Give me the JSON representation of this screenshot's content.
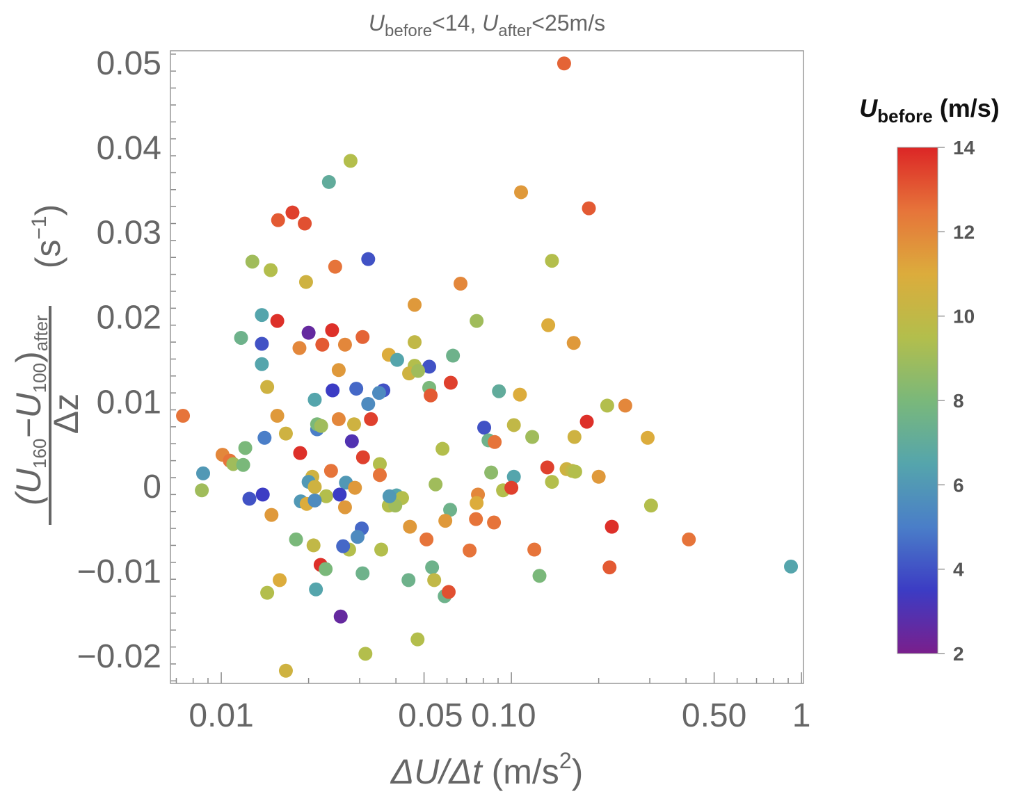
{
  "chart_data": {
    "type": "scatter",
    "title": {
      "u": "U",
      "sub1": "before",
      "mid": "<14, ",
      "u2": "U",
      "sub2": "after",
      "tail": "<25m/s"
    },
    "xlabel": {
      "main": "ΔU/Δt",
      "unit": " (m/s",
      "sup": "2",
      "close": ")"
    },
    "ylabel": {
      "open": "(U",
      "s1": "160",
      "minus": "−U",
      "s2": "100",
      "close": ")",
      "s3": "after",
      "den": "Δz",
      "unit": "(s",
      "sup": "−1",
      "uclose": ")"
    },
    "x_scale": "log",
    "xlim": [
      0.00668,
      1.016
    ],
    "ylim": [
      -0.0233,
      0.0514
    ],
    "x_ticks": [
      {
        "v": 0.01,
        "label": "0.01"
      },
      {
        "v": 0.05,
        "label": "0.05"
      },
      {
        "v": 0.1,
        "label": "0.10"
      },
      {
        "v": 0.5,
        "label": "0.50"
      },
      {
        "v": 1,
        "label": "1"
      }
    ],
    "y_ticks": [
      {
        "v": 0.05,
        "label": "0.05"
      },
      {
        "v": 0.04,
        "label": "0.04"
      },
      {
        "v": 0.03,
        "label": "0.03"
      },
      {
        "v": 0.02,
        "label": "0.02"
      },
      {
        "v": 0.01,
        "label": "0.01"
      },
      {
        "v": 0,
        "label": "0"
      },
      {
        "v": -0.01,
        "label": "−0.01"
      },
      {
        "v": -0.02,
        "label": "−0.02"
      }
    ],
    "grid": false,
    "colorbar": {
      "title_u": "U",
      "title_sub": "before",
      "title_unit": " (m/s)",
      "range": [
        2,
        14
      ],
      "ticks": [
        "14",
        "12",
        "10",
        "8",
        "6",
        "4",
        "2"
      ],
      "tick_values": [
        14,
        12,
        10,
        8,
        6,
        4,
        2
      ],
      "stops": [
        [
          2,
          "#7a1f8c"
        ],
        [
          3.5,
          "#3c3cc4"
        ],
        [
          5,
          "#4a7ec8"
        ],
        [
          6.5,
          "#55a5ac"
        ],
        [
          8,
          "#7ab87a"
        ],
        [
          9.5,
          "#b3be4c"
        ],
        [
          11,
          "#dcac3c"
        ],
        [
          12.5,
          "#e6743a"
        ],
        [
          14,
          "#dc2626"
        ]
      ],
      "placement": "right"
    },
    "points_columns": [
      "x",
      "y",
      "U_before"
    ],
    "points": [
      [
        0.152,
        0.0499,
        12.8
      ],
      [
        0.0279,
        0.0384,
        9.5
      ],
      [
        0.0235,
        0.0359,
        7
      ],
      [
        0.108,
        0.0347,
        11.5
      ],
      [
        0.185,
        0.0328,
        13
      ],
      [
        0.0176,
        0.0323,
        13.5
      ],
      [
        0.0157,
        0.0314,
        13
      ],
      [
        0.0194,
        0.031,
        13.2
      ],
      [
        0.0128,
        0.0265,
        9
      ],
      [
        0.0148,
        0.0255,
        9.5
      ],
      [
        0.0321,
        0.0268,
        4
      ],
      [
        0.138,
        0.0266,
        9.5
      ],
      [
        0.0247,
        0.0259,
        12.5
      ],
      [
        0.0196,
        0.0241,
        10.5
      ],
      [
        0.0668,
        0.0239,
        12
      ],
      [
        0.0464,
        0.0214,
        11.5
      ],
      [
        0.0138,
        0.0202,
        6.5
      ],
      [
        0.0156,
        0.0195,
        13.8
      ],
      [
        0.0759,
        0.0195,
        9
      ],
      [
        0.134,
        0.019,
        11
      ],
      [
        0.02,
        0.0181,
        2.5
      ],
      [
        0.0241,
        0.0184,
        13.8
      ],
      [
        0.0117,
        0.0175,
        7.5
      ],
      [
        0.0138,
        0.0168,
        4
      ],
      [
        0.0307,
        0.0176,
        12.8
      ],
      [
        0.0186,
        0.0163,
        12
      ],
      [
        0.0223,
        0.0167,
        13
      ],
      [
        0.0267,
        0.0167,
        12
      ],
      [
        0.0464,
        0.017,
        10
      ],
      [
        0.164,
        0.0169,
        11.5
      ],
      [
        0.0378,
        0.0155,
        11
      ],
      [
        0.0404,
        0.0149,
        6.5
      ],
      [
        0.0629,
        0.0154,
        7.5
      ],
      [
        0.0521,
        0.0141,
        4
      ],
      [
        0.0138,
        0.0144,
        6.5
      ],
      [
        0.0254,
        0.0137,
        11.5
      ],
      [
        0.0464,
        0.0142,
        9.5
      ],
      [
        0.0444,
        0.0133,
        10.5
      ],
      [
        0.0477,
        0.0136,
        9
      ],
      [
        0.0618,
        0.0122,
        13.5
      ],
      [
        0.0144,
        0.0117,
        10.5
      ],
      [
        0.0242,
        0.0113,
        3.5
      ],
      [
        0.0292,
        0.0115,
        4.5
      ],
      [
        0.0362,
        0.0113,
        4
      ],
      [
        0.035,
        0.011,
        5.5
      ],
      [
        0.0521,
        0.0116,
        8
      ],
      [
        0.0527,
        0.0107,
        13
      ],
      [
        0.0906,
        0.0112,
        7
      ],
      [
        0.107,
        0.0108,
        11
      ],
      [
        0.021,
        0.0102,
        6.5
      ],
      [
        0.0321,
        0.0097,
        5.5
      ],
      [
        0.00738,
        0.0083,
        12.5
      ],
      [
        0.0156,
        0.0083,
        11.5
      ],
      [
        0.0254,
        0.0079,
        12
      ],
      [
        0.0287,
        0.0073,
        10.5
      ],
      [
        0.0328,
        0.0079,
        13.5
      ],
      [
        0.0214,
        0.0067,
        5
      ],
      [
        0.0214,
        0.0073,
        8
      ],
      [
        0.0221,
        0.0071,
        9
      ],
      [
        0.0806,
        0.0069,
        4
      ],
      [
        0.102,
        0.0072,
        10
      ],
      [
        0.0167,
        0.0062,
        10.5
      ],
      [
        0.182,
        0.0076,
        13.8
      ],
      [
        0.214,
        0.0095,
        9.5
      ],
      [
        0.247,
        0.0095,
        12
      ],
      [
        0.0141,
        0.0057,
        5
      ],
      [
        0.118,
        0.0058,
        9
      ],
      [
        0.165,
        0.0058,
        10.5
      ],
      [
        0.295,
        0.0057,
        11
      ],
      [
        0.0834,
        0.0054,
        7.5
      ],
      [
        0.0876,
        0.0052,
        12.5
      ],
      [
        0.0121,
        0.0045,
        8
      ],
      [
        0.0282,
        0.0053,
        3
      ],
      [
        0.0187,
        0.0039,
        13.8
      ],
      [
        0.0579,
        0.0044,
        9.5
      ],
      [
        0.0101,
        0.0037,
        12
      ],
      [
        0.0107,
        0.003,
        12.5
      ],
      [
        0.011,
        0.0026,
        9
      ],
      [
        0.0119,
        0.0025,
        8
      ],
      [
        0.0308,
        0.0034,
        13.5
      ],
      [
        0.00866,
        0.0015,
        6
      ],
      [
        0.0206,
        0.0011,
        10.5
      ],
      [
        0.0239,
        0.0018,
        12.5
      ],
      [
        0.0352,
        0.0026,
        9.5
      ],
      [
        0.0352,
        0.0013,
        12.5
      ],
      [
        0.0852,
        0.0016,
        8.5
      ],
      [
        0.133,
        0.0022,
        13.5
      ],
      [
        0.155,
        0.002,
        10.5
      ],
      [
        0.162,
        0.0018,
        10
      ],
      [
        0.166,
        0.0017,
        9.5
      ],
      [
        0.2,
        0.0011,
        11.5
      ],
      [
        0.102,
        0.0011,
        6.5
      ],
      [
        0.0548,
        0.0002,
        9
      ],
      [
        0.0269,
        0.0004,
        6
      ],
      [
        0.02,
        0.0005,
        6
      ],
      [
        0.021,
        -0.0001,
        10.5
      ],
      [
        0.0289,
        -0.0002,
        11.5
      ],
      [
        0.00857,
        -0.0005,
        9
      ],
      [
        0.0125,
        -0.0015,
        4
      ],
      [
        0.0139,
        -0.001,
        3.5
      ],
      [
        0.023,
        -0.0012,
        9.5
      ],
      [
        0.0256,
        -0.001,
        3.5
      ],
      [
        0.0188,
        -0.0018,
        6
      ],
      [
        0.0197,
        -0.0021,
        11
      ],
      [
        0.021,
        -0.0017,
        5.5
      ],
      [
        0.0267,
        -0.0025,
        11.5
      ],
      [
        0.0402,
        -0.0011,
        6.5
      ],
      [
        0.042,
        -0.0014,
        9.5
      ],
      [
        0.0378,
        -0.0023,
        9.5
      ],
      [
        0.0398,
        -0.0023,
        9
      ],
      [
        0.0767,
        -0.001,
        12
      ],
      [
        0.0936,
        -0.0005,
        9.5
      ],
      [
        0.1,
        -0.0002,
        13.5
      ],
      [
        0.138,
        0.0005,
        9.5
      ],
      [
        0.303,
        -0.0023,
        9.5
      ],
      [
        0.0759,
        -0.002,
        11
      ],
      [
        0.0615,
        -0.0028,
        7.5
      ],
      [
        0.0149,
        -0.0034,
        11.5
      ],
      [
        0.0592,
        -0.0041,
        11.5
      ],
      [
        0.0755,
        -0.0039,
        12.5
      ],
      [
        0.0871,
        -0.0043,
        12.5
      ],
      [
        0.0447,
        -0.0048,
        11.5
      ],
      [
        0.0305,
        -0.005,
        4.5
      ],
      [
        0.0295,
        -0.006,
        5.5
      ],
      [
        0.0181,
        -0.0063,
        8
      ],
      [
        0.0208,
        -0.007,
        10
      ],
      [
        0.0276,
        -0.0075,
        9.5
      ],
      [
        0.0263,
        -0.0071,
        4.5
      ],
      [
        0.051,
        -0.0063,
        12.5
      ],
      [
        0.0718,
        -0.0076,
        12.5
      ],
      [
        0.12,
        -0.0075,
        12.5
      ],
      [
        0.222,
        -0.0048,
        13.8
      ],
      [
        0.409,
        -0.0063,
        12.5
      ],
      [
        0.92,
        -0.0095,
        6.5
      ],
      [
        0.218,
        -0.0096,
        13
      ],
      [
        0.022,
        -0.0093,
        13.8
      ],
      [
        0.0229,
        -0.0098,
        8
      ],
      [
        0.0533,
        -0.0096,
        7.5
      ],
      [
        0.0307,
        -0.0103,
        7.5
      ],
      [
        0.0442,
        -0.0111,
        7.5
      ],
      [
        0.0542,
        -0.0111,
        10
      ],
      [
        0.0159,
        -0.0111,
        11
      ],
      [
        0.0144,
        -0.0126,
        9.5
      ],
      [
        0.0212,
        -0.0122,
        6.5
      ],
      [
        0.0589,
        -0.013,
        7.5
      ],
      [
        0.0608,
        -0.0125,
        13.2
      ],
      [
        0.125,
        -0.0106,
        8
      ],
      [
        0.0258,
        -0.0154,
        2.5
      ],
      [
        0.0475,
        -0.0181,
        9.5
      ],
      [
        0.0314,
        -0.0198,
        9.5
      ],
      [
        0.0167,
        -0.0218,
        10.5
      ],
      [
        0.0356,
        -0.0075,
        9.5
      ],
      [
        0.038,
        -0.0012,
        6
      ]
    ]
  }
}
